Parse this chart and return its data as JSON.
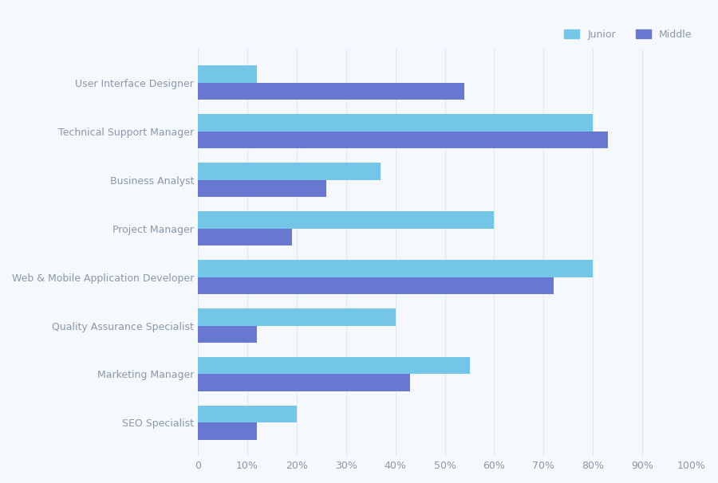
{
  "categories": [
    "SEO Specialist",
    "Marketing Manager",
    "Quality Assurance Specialist",
    "Web & Mobile Application Developer",
    "Project Manager",
    "Business Analyst",
    "Technical Support Manager",
    "User Interface Designer"
  ],
  "junior": [
    20,
    55,
    40,
    80,
    60,
    37,
    80,
    12
  ],
  "middle": [
    12,
    43,
    12,
    72,
    19,
    26,
    83,
    54
  ],
  "junior_color": "#73C6E7",
  "middle_color": "#6878D0",
  "background_color": "#F5F8FC",
  "grid_color": "#DDEAF5",
  "text_color": "#8898AA",
  "bar_height": 0.35,
  "xlim": [
    0,
    100
  ],
  "xticks": [
    0,
    10,
    20,
    30,
    40,
    50,
    60,
    70,
    80,
    90,
    100
  ],
  "xtick_labels": [
    "0",
    "10%",
    "20%",
    "30%",
    "40%",
    "50%",
    "60%",
    "70%",
    "80%",
    "90%",
    "100%"
  ],
  "legend_labels": [
    "Junior",
    "Middle"
  ],
  "tick_fontsize": 9,
  "label_fontsize": 9
}
